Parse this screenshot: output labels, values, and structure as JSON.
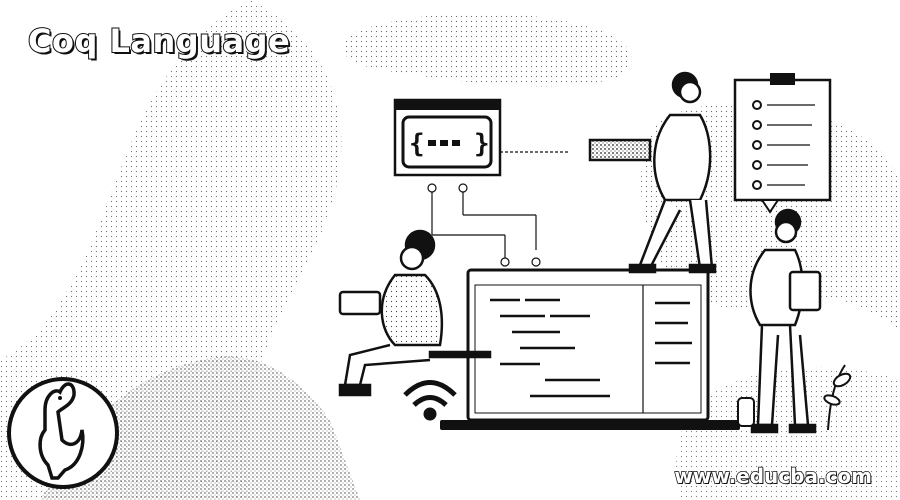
{
  "title": "Coq Language",
  "site": "www.educba.com",
  "icons": {
    "code_window": "curly-braces-code-window-icon",
    "checklist": "checklist-clipboard-icon",
    "wifi": "wifi-icon",
    "rooster_logo": "coq-rooster-logo-icon"
  }
}
